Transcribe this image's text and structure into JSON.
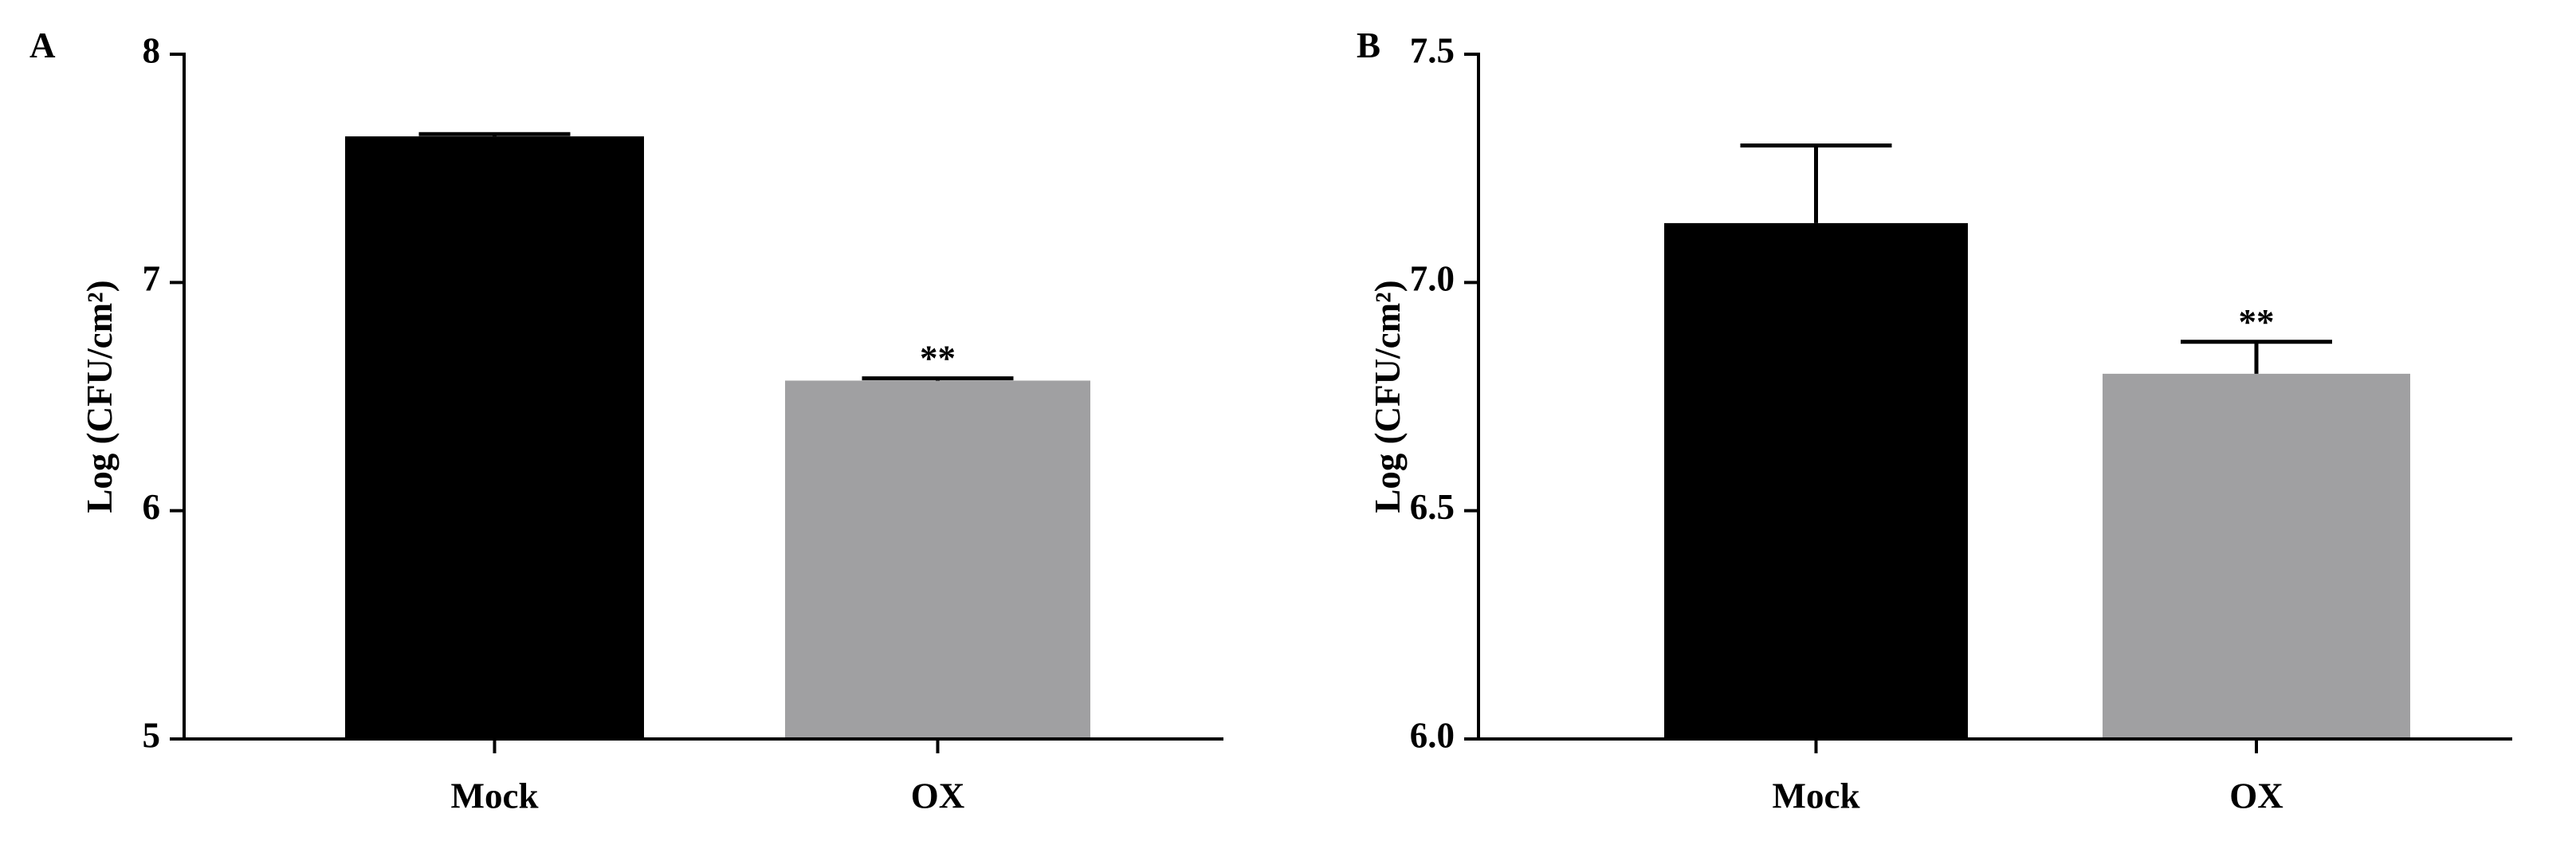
{
  "chart_data": [
    {
      "type": "bar",
      "panel": "A",
      "y_label": "Log (CFU/cm²)",
      "categories": [
        "Mock",
        "OX"
      ],
      "values": [
        7.64,
        6.57
      ],
      "errors": [
        0.01,
        0.01
      ],
      "colors": [
        "#000000",
        "#a0a0a2"
      ],
      "annotations": [
        "**"
      ],
      "ylim": [
        5,
        8
      ],
      "yticks": [
        5,
        6,
        7,
        8
      ]
    },
    {
      "type": "bar",
      "panel": "B",
      "y_label": "Log (CFU/cm²)",
      "categories": [
        "Mock",
        "OX"
      ],
      "values": [
        7.13,
        6.8
      ],
      "errors": [
        0.17,
        0.07
      ],
      "colors": [
        "#000000",
        "#a0a0a2"
      ],
      "annotations": [
        "**"
      ],
      "ylim": [
        6.0,
        7.5
      ],
      "yticks": [
        {
          "value": 6.0,
          "label": "6.0"
        },
        {
          "value": 6.5,
          "label": "6.5"
        },
        {
          "value": 7.0,
          "label": "7.0"
        },
        {
          "value": 7.5,
          "label": "7.5"
        }
      ]
    }
  ]
}
